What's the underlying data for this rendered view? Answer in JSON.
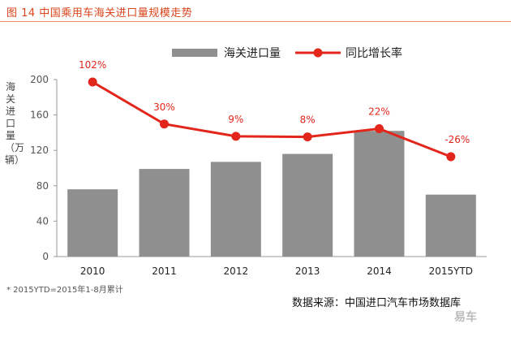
{
  "title": "图 14  中国乘用车海关进口量规模走势",
  "chart_data": {
    "type": "bar",
    "categories": [
      "2010",
      "2011",
      "2012",
      "2013",
      "2014",
      "2015YTD"
    ],
    "series": [
      {
        "name": "海关进口量",
        "type": "bar",
        "color": "#8f8f8f",
        "values": [
          76,
          99,
          107,
          116,
          142,
          70
        ]
      },
      {
        "name": "同比增长率",
        "type": "line",
        "color": "#e2261c",
        "values": [
          102,
          30,
          9,
          8,
          22,
          -26
        ],
        "labels": [
          "102%",
          "30%",
          "9%",
          "8%",
          "22%",
          "-26%"
        ]
      }
    ],
    "ylabel": "海关进口量（万辆）",
    "ylim": [
      0,
      200
    ],
    "yticks": [
      0,
      40,
      80,
      120,
      160,
      200
    ],
    "legend_position": "top",
    "grid": false
  },
  "footnote": "* 2015YTD=2015年1-8月累计",
  "source": "数据来源：中国进口汽车市场数据库",
  "watermark": "易车"
}
